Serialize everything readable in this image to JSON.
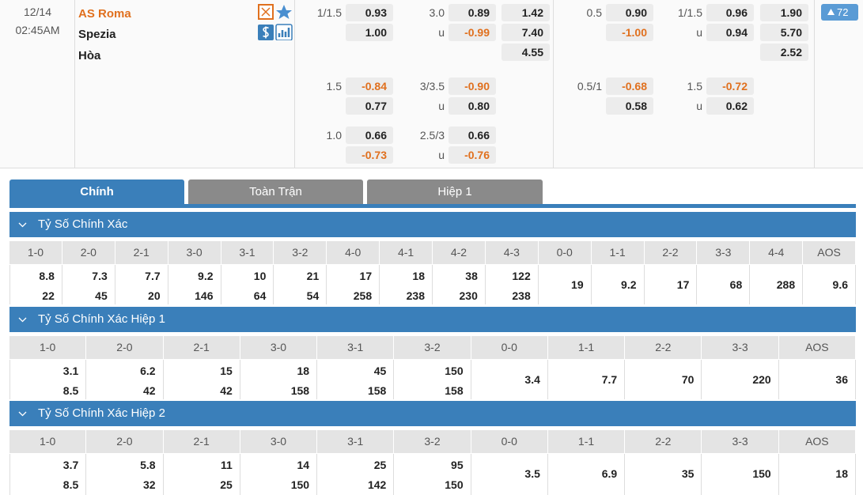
{
  "match": {
    "date": "12/14",
    "time": "02:45AM",
    "home": "AS Roma",
    "away": "Spezia",
    "draw": "Hòa",
    "more_count": "72"
  },
  "full_time": {
    "lines": [
      {
        "handicap": "1/1.5",
        "home": "0.93",
        "away": "1.00",
        "ou_line": "3.0",
        "over": "0.89",
        "under_label": "u",
        "under": "-0.99"
      },
      {
        "handicap": "1.5",
        "home": "-0.84",
        "away": "0.77",
        "ou_line": "3/3.5",
        "over": "-0.90",
        "under_label": "u",
        "under": "0.80"
      },
      {
        "handicap": "1.0",
        "home": "0.66",
        "away": "-0.73",
        "ou_line": "2.5/3",
        "over": "0.66",
        "under_label": "u",
        "under": "-0.76"
      }
    ],
    "one_x_two": [
      "1.42",
      "7.40",
      "4.55"
    ]
  },
  "half_time": {
    "lines": [
      {
        "handicap": "0.5",
        "home": "0.90",
        "away": "-1.00",
        "ou_line": "1/1.5",
        "over": "0.96",
        "under_label": "u",
        "under": "0.94"
      },
      {
        "handicap": "0.5/1",
        "home": "-0.68",
        "away": "0.58",
        "ou_line": "1.5",
        "over": "-0.72",
        "under_label": "u",
        "under": "0.62"
      }
    ],
    "one_x_two": [
      "1.90",
      "5.70",
      "2.52"
    ]
  },
  "tabs": [
    "Chính",
    "Toàn Trận",
    "Hiệp 1"
  ],
  "sections": [
    {
      "title": "Tỷ Số Chính Xác",
      "columns": [
        {
          "score": "1-0",
          "values": [
            "8.8",
            "22"
          ]
        },
        {
          "score": "2-0",
          "values": [
            "7.3",
            "45"
          ]
        },
        {
          "score": "2-1",
          "values": [
            "7.7",
            "20"
          ]
        },
        {
          "score": "3-0",
          "values": [
            "9.2",
            "146"
          ]
        },
        {
          "score": "3-1",
          "values": [
            "10",
            "64"
          ]
        },
        {
          "score": "3-2",
          "values": [
            "21",
            "54"
          ]
        },
        {
          "score": "4-0",
          "values": [
            "17",
            "258"
          ]
        },
        {
          "score": "4-1",
          "values": [
            "18",
            "238"
          ]
        },
        {
          "score": "4-2",
          "values": [
            "38",
            "230"
          ]
        },
        {
          "score": "4-3",
          "values": [
            "122",
            "238"
          ]
        },
        {
          "score": "0-0",
          "values": [
            "19"
          ]
        },
        {
          "score": "1-1",
          "values": [
            "9.2"
          ]
        },
        {
          "score": "2-2",
          "values": [
            "17"
          ]
        },
        {
          "score": "3-3",
          "values": [
            "68"
          ]
        },
        {
          "score": "4-4",
          "values": [
            "288"
          ]
        },
        {
          "score": "AOS",
          "values": [
            "9.6"
          ]
        }
      ]
    },
    {
      "title": "Tỷ Số Chính Xác Hiệp 1",
      "columns": [
        {
          "score": "1-0",
          "values": [
            "3.1",
            "8.5"
          ]
        },
        {
          "score": "2-0",
          "values": [
            "6.2",
            "42"
          ]
        },
        {
          "score": "2-1",
          "values": [
            "15",
            "42"
          ]
        },
        {
          "score": "3-0",
          "values": [
            "18",
            "158"
          ]
        },
        {
          "score": "3-1",
          "values": [
            "45",
            "158"
          ]
        },
        {
          "score": "3-2",
          "values": [
            "150",
            "158"
          ]
        },
        {
          "score": "0-0",
          "values": [
            "3.4"
          ]
        },
        {
          "score": "1-1",
          "values": [
            "7.7"
          ]
        },
        {
          "score": "2-2",
          "values": [
            "70"
          ]
        },
        {
          "score": "3-3",
          "values": [
            "220"
          ]
        },
        {
          "score": "AOS",
          "values": [
            "36"
          ]
        }
      ]
    },
    {
      "title": "Tỷ Số Chính Xác Hiệp 2",
      "columns": [
        {
          "score": "1-0",
          "values": [
            "3.7",
            "8.5"
          ]
        },
        {
          "score": "2-0",
          "values": [
            "5.8",
            "32"
          ]
        },
        {
          "score": "2-1",
          "values": [
            "11",
            "25"
          ]
        },
        {
          "score": "3-0",
          "values": [
            "14",
            "150"
          ]
        },
        {
          "score": "3-1",
          "values": [
            "25",
            "142"
          ]
        },
        {
          "score": "3-2",
          "values": [
            "95",
            "150"
          ]
        },
        {
          "score": "0-0",
          "values": [
            "3.5"
          ]
        },
        {
          "score": "1-1",
          "values": [
            "6.9"
          ]
        },
        {
          "score": "2-2",
          "values": [
            "35"
          ]
        },
        {
          "score": "3-3",
          "values": [
            "150"
          ]
        },
        {
          "score": "AOS",
          "values": [
            "18"
          ]
        }
      ]
    }
  ]
}
